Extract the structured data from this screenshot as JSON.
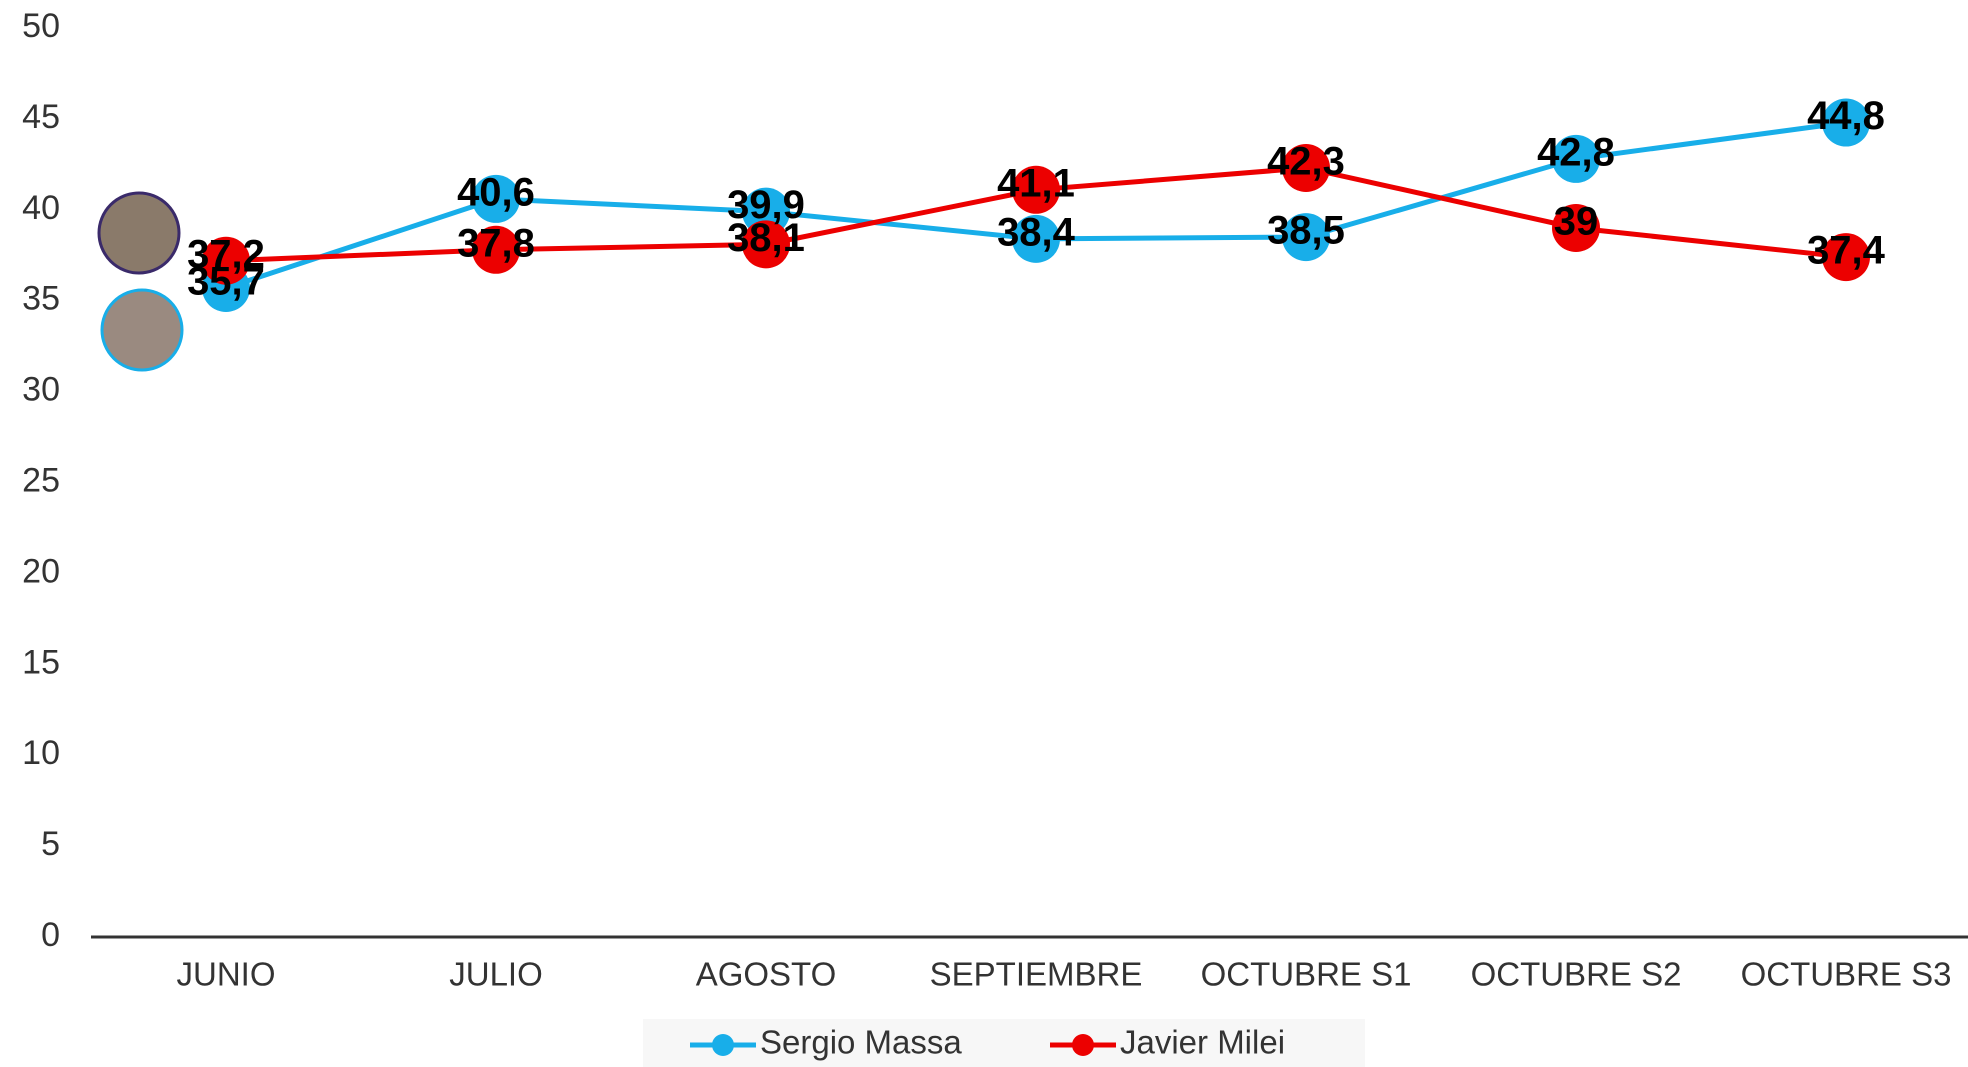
{
  "chart_data": {
    "type": "line",
    "categories": [
      "JUNIO",
      "JULIO",
      "AGOSTO",
      "SEPTIEMBRE",
      "OCTUBRE S1",
      "OCTUBRE S2",
      "OCTUBRE S3"
    ],
    "series": [
      {
        "name": "Sergio Massa",
        "color": "#18aee9",
        "values": [
          35.7,
          40.6,
          39.9,
          38.4,
          38.5,
          42.8,
          44.8
        ],
        "value_labels": [
          "35,7",
          "40,6",
          "39,9",
          "38,4",
          "38,5",
          "42,8",
          "44,8"
        ]
      },
      {
        "name": "Javier Milei",
        "color": "#ec0000",
        "values": [
          37.2,
          37.8,
          38.1,
          41.1,
          42.3,
          39,
          37.4
        ],
        "value_labels": [
          "37,2",
          "37,8",
          "38,1",
          "41,1",
          "42,3",
          "39",
          "37,4"
        ]
      }
    ],
    "ylim": [
      0,
      50
    ],
    "yticks": [
      0,
      5,
      10,
      15,
      20,
      25,
      30,
      35,
      40,
      45,
      50
    ],
    "grid": false,
    "legend": "bottom"
  }
}
